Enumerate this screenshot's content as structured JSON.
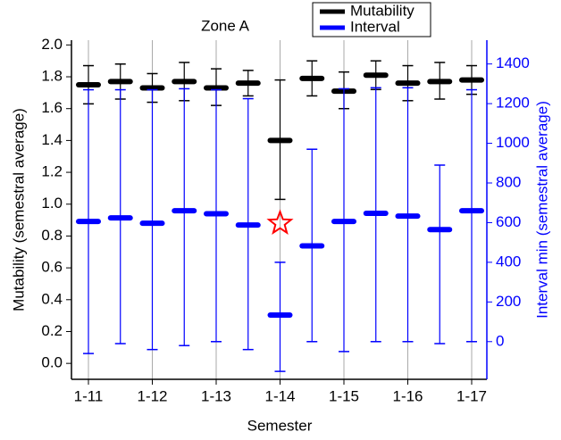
{
  "chart_data": {
    "type": "errorbar",
    "title": "Zone A",
    "x_label": "Semester",
    "y_label": "Mutability (semestral average)",
    "y2_label": "Interval  min (semestral average)",
    "categories": [
      "1-11",
      null,
      "1-12",
      null,
      "1-13",
      null,
      "1-14",
      null,
      "1-15",
      null,
      "1-16",
      null,
      "1-17"
    ],
    "ylim": [
      -0.1,
      2.03
    ],
    "yticks": [
      {
        "value": 0,
        "label": "0.0"
      },
      0.2,
      0.4,
      0.6,
      0.8,
      {
        "value": 1,
        "label": "1.0"
      },
      1.2,
      1.4,
      1.6,
      1.8,
      {
        "value": 2,
        "label": "2.0"
      }
    ],
    "y2lim": [
      -190,
      1520
    ],
    "y2ticks": [
      0,
      200,
      400,
      600,
      800,
      1000,
      1200,
      1400
    ],
    "grid": true,
    "legend": "top",
    "series": [
      {
        "name": "Mutability",
        "color": "#000000",
        "values": [
          1.75,
          1.77,
          1.73,
          1.77,
          1.73,
          1.76,
          1.4,
          1.79,
          1.71,
          1.81,
          1.76,
          1.77,
          1.78
        ],
        "low": [
          1.63,
          1.66,
          1.64,
          1.65,
          1.62,
          1.68,
          1.03,
          1.68,
          1.6,
          1.72,
          1.65,
          1.66,
          1.69
        ],
        "high": [
          1.87,
          1.88,
          1.82,
          1.89,
          1.85,
          1.84,
          1.78,
          1.9,
          1.83,
          1.9,
          1.87,
          1.89,
          1.87
        ]
      },
      {
        "name": "Interval",
        "color": "#0000ff",
        "axis": "y2",
        "values": [
          606,
          624,
          597,
          660,
          645,
          588,
          134,
          483,
          606,
          647,
          633,
          565,
          660
        ],
        "low": [
          -60,
          -10,
          -40,
          -20,
          0,
          -40,
          -150,
          0,
          -50,
          0,
          0,
          -10,
          0
        ],
        "high": [
          1270,
          1270,
          1270,
          1275,
          1270,
          1225,
          400,
          970,
          1275,
          1280,
          1280,
          890,
          1270
        ]
      }
    ],
    "highlight": {
      "category": "1-14",
      "value": 0.88,
      "color": "#ff0000"
    }
  }
}
